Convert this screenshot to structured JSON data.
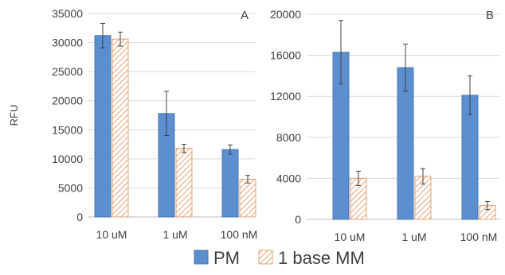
{
  "chart_data": [
    {
      "type": "bar",
      "panel_label": "A",
      "categories": [
        "10 uM",
        "1 uM",
        "100 nM"
      ],
      "ylabel": "RFU",
      "ylim": [
        0,
        35000
      ],
      "yticks": [
        0,
        5000,
        10000,
        15000,
        20000,
        25000,
        30000,
        35000
      ],
      "ytick_labels": [
        "0",
        "5000",
        "10000",
        "15000",
        "20000",
        "25000",
        "30000",
        "35000"
      ],
      "grid": true,
      "series": [
        {
          "name": "PM",
          "values": [
            31200,
            17800,
            11600
          ],
          "errors": [
            2100,
            3800,
            800
          ]
        },
        {
          "name": "1 base MM",
          "values": [
            30600,
            11800,
            6500
          ],
          "errors": [
            1200,
            700,
            650
          ]
        }
      ]
    },
    {
      "type": "bar",
      "panel_label": "B",
      "categories": [
        "10 uM",
        "1 uM",
        "100 nM"
      ],
      "ylabel": "",
      "ylim": [
        0,
        20000
      ],
      "yticks": [
        0,
        4000,
        8000,
        12000,
        16000,
        20000
      ],
      "ytick_labels": [
        "0",
        "4000",
        "8000",
        "12000",
        "16000",
        "20000"
      ],
      "grid": true,
      "series": [
        {
          "name": "PM",
          "values": [
            16300,
            14800,
            12100
          ],
          "errors": [
            3100,
            2300,
            1900
          ]
        },
        {
          "name": "1 base MM",
          "values": [
            4000,
            4200,
            1350
          ],
          "errors": [
            700,
            750,
            400
          ]
        }
      ]
    }
  ],
  "legend": {
    "placement": "bottom",
    "items": [
      {
        "label": "PM",
        "style": "solid"
      },
      {
        "label": "1 base MM",
        "style": "hatched"
      }
    ]
  },
  "colors": {
    "pm_fill": "#5b8fcf",
    "pm_stroke": "#4a78b5",
    "mm_hatch": "#f0a070",
    "mm_stroke": "#e8a070",
    "grid": "#d9d9d9",
    "axis": "#bfbfbf",
    "text": "#404040",
    "error_bar": "#404040"
  }
}
